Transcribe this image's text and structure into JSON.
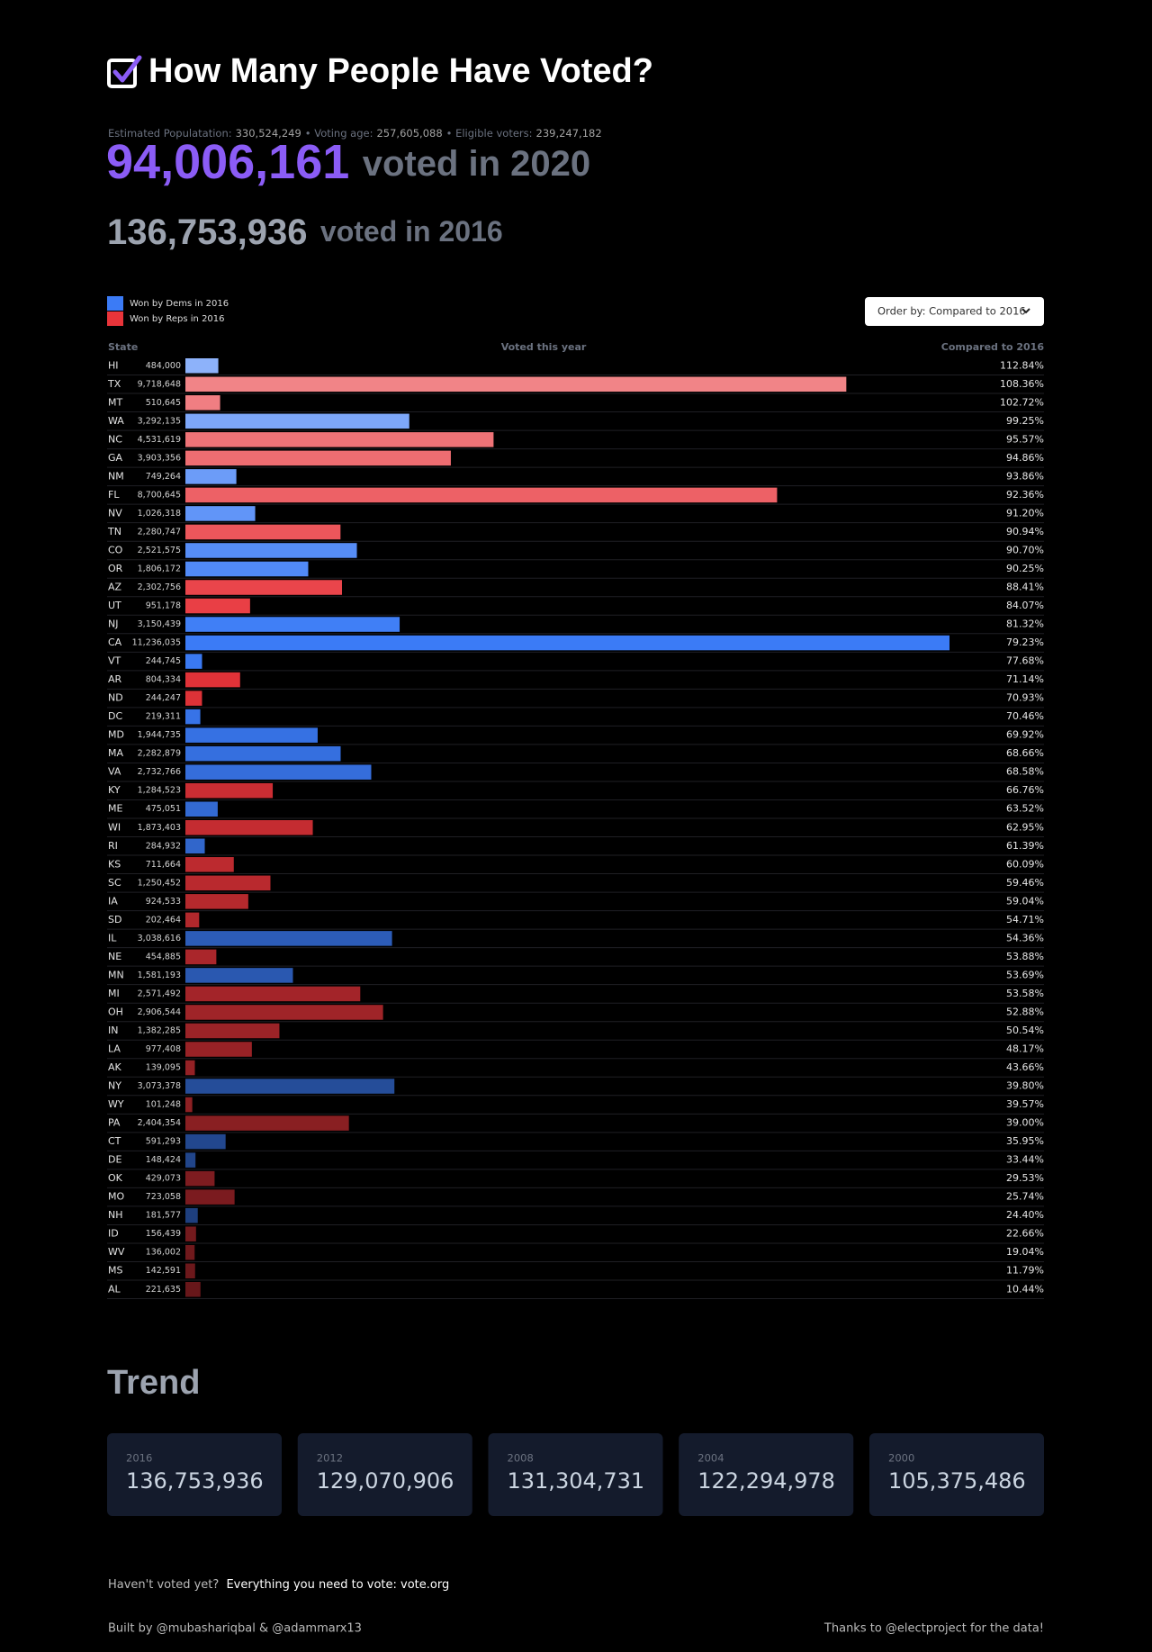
{
  "header": {
    "title": "How Many People Have Voted?"
  },
  "stats": {
    "items": [
      {
        "label": "Estimated Populatation:",
        "value": "330,524,249"
      },
      {
        "label": "• Voting age:",
        "value": "257,605,088"
      },
      {
        "label": "• Eligible voters:",
        "value": "239,247,182"
      }
    ],
    "current_total": "94,006,161",
    "current_caption": "voted in 2020",
    "previous_total": "136,753,936",
    "previous_caption": "voted in 2016"
  },
  "order_by": "Order by: Compared to 2016",
  "chart_data": {
    "type": "bar",
    "orientation": "horizontal",
    "column_headers": [
      "State",
      "Voted this year",
      "Compared to 2016"
    ],
    "categories": [
      "HI",
      "TX",
      "MT",
      "WA",
      "NC",
      "GA",
      "NM",
      "FL",
      "NV",
      "TN",
      "CO",
      "OR",
      "AZ",
      "UT",
      "NJ",
      "CA",
      "VT",
      "AR",
      "ND",
      "DC",
      "MD",
      "MA",
      "VA",
      "KY",
      "ME",
      "WI",
      "RI",
      "KS",
      "SC",
      "IA",
      "SD",
      "IL",
      "NE",
      "MN",
      "MI",
      "OH",
      "IN",
      "LA",
      "AK",
      "NY",
      "WY",
      "PA",
      "CT",
      "DE",
      "OK",
      "MO",
      "NH",
      "ID",
      "WV",
      "MS",
      "AL"
    ],
    "series": [
      {
        "name": "Won by Dems in 2016",
        "color": "#3b7bf6",
        "values": [
          484000,
          null,
          null,
          3292135,
          null,
          null,
          749264,
          null,
          1026318,
          null,
          2521575,
          1806172,
          null,
          null,
          3150439,
          11236035,
          244745,
          null,
          null,
          219311,
          1944735,
          2282879,
          2732766,
          null,
          475051,
          null,
          284932,
          null,
          null,
          null,
          null,
          3038616,
          null,
          1581193,
          null,
          null,
          null,
          null,
          null,
          3073378,
          null,
          null,
          591293,
          148424,
          null,
          null,
          181577,
          null,
          null,
          null,
          null
        ],
        "value_labels": [
          "484,000",
          null,
          null,
          "3,292,135",
          null,
          null,
          "749,264",
          null,
          "1,026,318",
          null,
          "2,521,575",
          "1,806,172",
          null,
          null,
          "3,150,439",
          "11,236,035",
          "244,745",
          null,
          null,
          "219,311",
          "1,944,735",
          "2,282,879",
          "2,732,766",
          null,
          "475,051",
          null,
          "284,932",
          null,
          null,
          null,
          null,
          "3,038,616",
          null,
          "1,581,193",
          null,
          null,
          null,
          null,
          null,
          "3,073,378",
          null,
          null,
          "591,293",
          "148,424",
          null,
          null,
          "181,577",
          null,
          null,
          null,
          null
        ]
      },
      {
        "name": "Won by Reps in 2016",
        "color": "#e8343a",
        "values": [
          null,
          9718648,
          510645,
          null,
          4531619,
          3903356,
          null,
          8700645,
          null,
          2280747,
          null,
          null,
          2302756,
          951178,
          null,
          null,
          null,
          804334,
          244247,
          null,
          null,
          null,
          null,
          1284523,
          null,
          1873403,
          null,
          711664,
          1250452,
          924533,
          202464,
          null,
          454885,
          null,
          2571492,
          2906544,
          1382285,
          977408,
          139095,
          null,
          101248,
          2404354,
          null,
          null,
          429073,
          723058,
          null,
          156439,
          136002,
          142591,
          221635
        ],
        "value_labels": [
          null,
          "9,718,648",
          "510,645",
          null,
          "4,531,619",
          "3,903,356",
          null,
          "8,700,645",
          null,
          "2,280,747",
          null,
          null,
          "2,302,756",
          "951,178",
          null,
          null,
          null,
          "804,334",
          "244,247",
          null,
          null,
          null,
          null,
          "1,284,523",
          null,
          "1,873,403",
          null,
          "711,664",
          "1,250,452",
          "924,533",
          "202,464",
          null,
          "454,885",
          null,
          "2,571,492",
          "2,906,544",
          "1,382,285",
          "977,408",
          "139,095",
          null,
          "101,248",
          "2,404,354",
          null,
          null,
          "429,073",
          "723,058",
          null,
          "156,439",
          "136,002",
          "142,591",
          "221,635"
        ]
      }
    ],
    "compared": [
      "112.84%",
      "108.36%",
      "102.72%",
      "99.25%",
      "95.57%",
      "94.86%",
      "93.86%",
      "92.36%",
      "91.20%",
      "90.94%",
      "90.70%",
      "90.25%",
      "88.41%",
      "84.07%",
      "81.32%",
      "79.23%",
      "77.68%",
      "71.14%",
      "70.93%",
      "70.46%",
      "69.92%",
      "68.66%",
      "68.58%",
      "66.76%",
      "63.52%",
      "62.95%",
      "61.39%",
      "60.09%",
      "59.46%",
      "59.04%",
      "54.71%",
      "54.36%",
      "53.88%",
      "53.69%",
      "53.58%",
      "52.88%",
      "50.54%",
      "48.17%",
      "43.66%",
      "39.80%",
      "39.57%",
      "39.00%",
      "35.95%",
      "33.44%",
      "29.53%",
      "25.74%",
      "24.40%",
      "22.66%",
      "19.04%",
      "11.79%",
      "10.44%"
    ]
  },
  "trend": {
    "title": "Trend",
    "cards": [
      {
        "year": "2016",
        "total": "136,753,936"
      },
      {
        "year": "2012",
        "total": "129,070,906"
      },
      {
        "year": "2008",
        "total": "131,304,731"
      },
      {
        "year": "2004",
        "total": "122,294,978"
      },
      {
        "year": "2000",
        "total": "105,375,486"
      }
    ]
  },
  "footer": {
    "question": "Haven't voted yet?",
    "link": "Everything you need to vote: vote.org",
    "credits": "Built by @mubashariqbal & @adammarx13",
    "thanks": "Thanks to @electproject for the data!"
  }
}
